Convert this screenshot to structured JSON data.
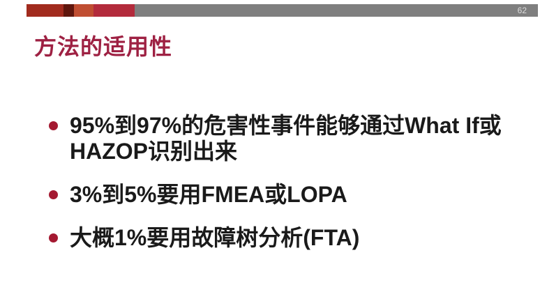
{
  "top_bar": {
    "page_number": "62",
    "segment_colors": [
      "#A12B1E",
      "#5F160D",
      "#C04E32",
      "#B32B3C"
    ],
    "gray_color": "#7F7F7F",
    "page_number_color": "#DCDCDC"
  },
  "header": {
    "title": "方法的适用性",
    "title_color": "#9E2143"
  },
  "content": {
    "bullet_color": "#A41931",
    "text_color": "#1a1a1a",
    "bullets": [
      {
        "lines": [
          "95%到97%的危害性事件能够通过What If或",
          "HAZOP识别出来"
        ]
      },
      {
        "lines": [
          "3%到5%要用FMEA或LOPA"
        ]
      },
      {
        "lines": [
          "大概1%要用故障树分析(FTA)"
        ]
      }
    ]
  }
}
